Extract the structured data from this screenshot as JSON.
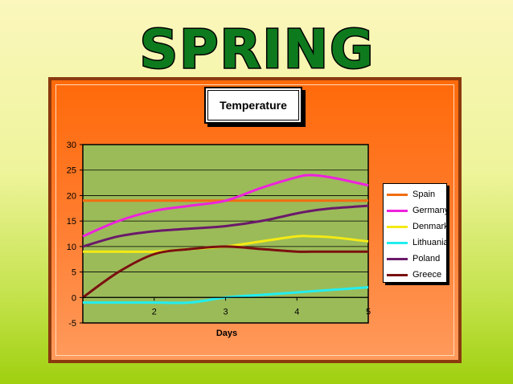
{
  "banner": {
    "text": "SPRING",
    "color": "#0e7a1e",
    "outline": "#000000"
  },
  "chart_data": {
    "type": "line",
    "title": "Temperature",
    "xlabel": "Days",
    "ylabel": "",
    "xlim": [
      1,
      5
    ],
    "ylim": [
      -5,
      30
    ],
    "yticks": [
      -5,
      0,
      5,
      10,
      15,
      20,
      25,
      30
    ],
    "xtick_labels": [
      {
        "x": 2,
        "label": "2"
      },
      {
        "x": 3,
        "label": "3"
      },
      {
        "x": 4,
        "label": "4"
      },
      {
        "x": 5,
        "label": "5"
      }
    ],
    "grid": "horizontal",
    "legend": "right",
    "plot_background": "#9bbb59",
    "x": [
      1,
      1.5,
      2,
      2.5,
      3,
      3.5,
      4,
      4.2,
      4.5,
      5
    ],
    "series": [
      {
        "name": "Spain",
        "color": "#f26d10",
        "values": [
          19,
          19,
          19,
          19,
          19,
          19,
          19,
          19,
          19,
          19
        ]
      },
      {
        "name": "Germany",
        "color": "#ee22dd",
        "values": [
          12,
          15,
          17,
          18,
          19,
          21.5,
          23.6,
          24,
          23.5,
          22
        ]
      },
      {
        "name": "Denmark",
        "color": "#f4ea14",
        "values": [
          9,
          9,
          9,
          9.5,
          10,
          11,
          12,
          12,
          11.8,
          11
        ]
      },
      {
        "name": "Lithuania",
        "color": "#22eef0",
        "values": [
          -1,
          -1,
          -1,
          -1,
          0,
          0.5,
          1,
          1.2,
          1.5,
          2
        ]
      },
      {
        "name": "Poland",
        "color": "#6a1a6a",
        "values": [
          10,
          12,
          13,
          13.5,
          14,
          15,
          16.5,
          17,
          17.5,
          18
        ]
      },
      {
        "name": "Greece",
        "color": "#7a1010",
        "values": [
          0,
          5,
          8.5,
          9.5,
          10,
          9.5,
          9,
          9,
          9,
          9
        ]
      }
    ]
  }
}
